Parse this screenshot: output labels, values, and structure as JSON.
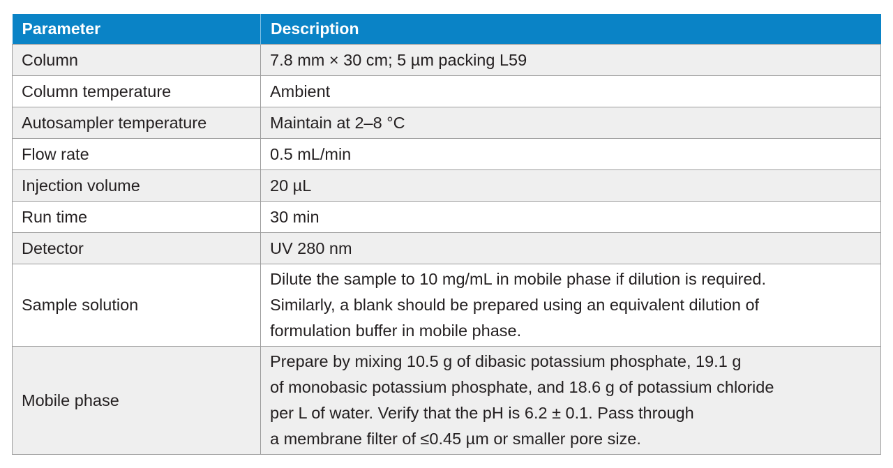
{
  "header": {
    "parameter": "Parameter",
    "description": "Description"
  },
  "rows": [
    {
      "parameter": "Column",
      "description": [
        "7.8 mm × 30 cm; 5 µm packing L59"
      ]
    },
    {
      "parameter": "Column temperature",
      "description": [
        "Ambient"
      ]
    },
    {
      "parameter": "Autosampler temperature",
      "description": [
        "Maintain at 2–8 °C"
      ]
    },
    {
      "parameter": "Flow rate",
      "description": [
        "0.5 mL/min"
      ]
    },
    {
      "parameter": "Injection volume",
      "description": [
        "20 µL"
      ]
    },
    {
      "parameter": "Run time",
      "description": [
        "30 min"
      ]
    },
    {
      "parameter": "Detector",
      "description": [
        "UV 280 nm"
      ]
    },
    {
      "parameter": "Sample solution",
      "description": [
        "Dilute the sample to 10 mg/mL in mobile phase if dilution is required.",
        "Similarly, a blank should be prepared using an equivalent dilution of",
        "formulation buffer in mobile phase."
      ]
    },
    {
      "parameter": "Mobile phase",
      "description": [
        "Prepare by mixing 10.5 g of dibasic potassium phosphate, 19.1 g",
        "of monobasic potassium phosphate, and 18.6 g of potassium chloride",
        "per L of water. Verify that the pH is 6.2 ± 0.1. Pass through",
        "a membrane filter of ≤0.45 µm or smaller pore size."
      ]
    }
  ],
  "colors": {
    "header_bg": "#0a83c6",
    "header_text": "#ffffff",
    "row_alt_bg": "#efefef",
    "border": "#9c9c9c"
  }
}
